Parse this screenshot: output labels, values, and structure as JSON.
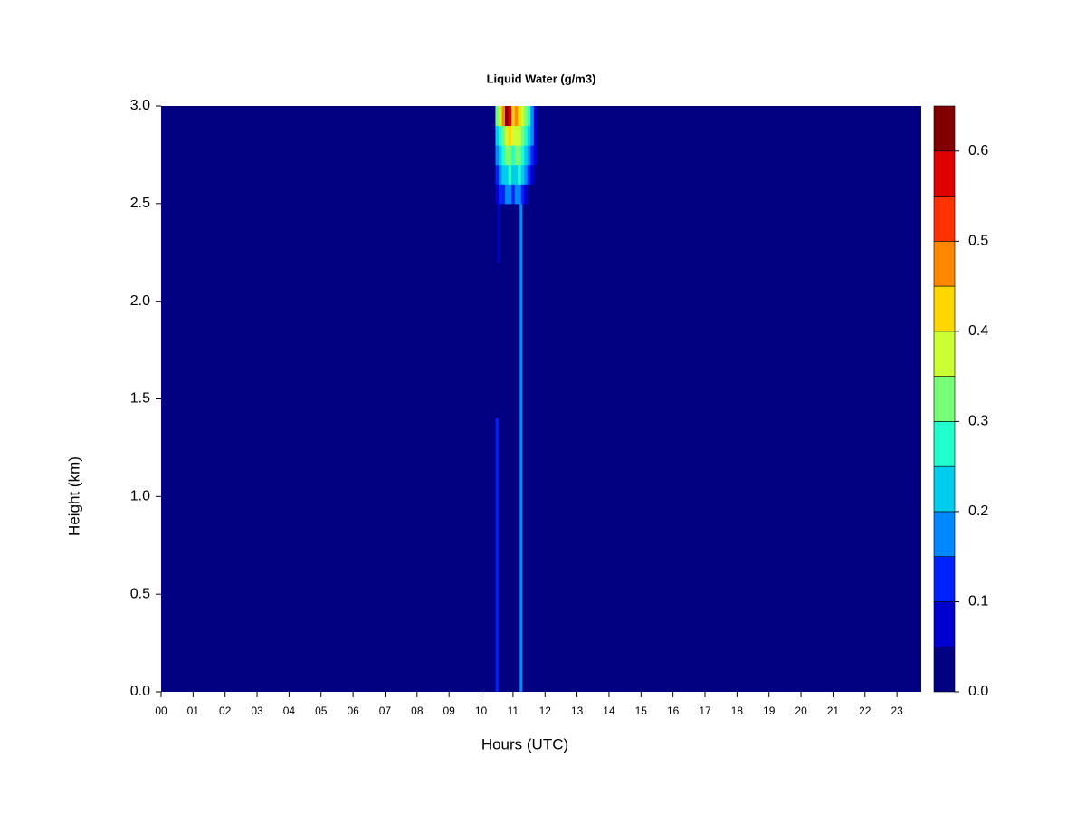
{
  "chart_data": {
    "type": "heatmap",
    "title": "Liquid Water (g/m3)",
    "x_label": "Hours (UTC)",
    "y_label": "Height (km)",
    "xlim": [
      0,
      23.76
    ],
    "ylim": [
      0,
      3
    ],
    "xticks": [
      {
        "value": 0,
        "label": "00"
      },
      {
        "value": 1,
        "label": "01"
      },
      {
        "value": 2,
        "label": "02"
      },
      {
        "value": 3,
        "label": "03"
      },
      {
        "value": 4,
        "label": "04"
      },
      {
        "value": 5,
        "label": "05"
      },
      {
        "value": 6,
        "label": "06"
      },
      {
        "value": 7,
        "label": "07"
      },
      {
        "value": 8,
        "label": "08"
      },
      {
        "value": 9,
        "label": "09"
      },
      {
        "value": 10,
        "label": "10"
      },
      {
        "value": 11,
        "label": "11"
      },
      {
        "value": 12,
        "label": "12"
      },
      {
        "value": 13,
        "label": "13"
      },
      {
        "value": 14,
        "label": "14"
      },
      {
        "value": 15,
        "label": "15"
      },
      {
        "value": 16,
        "label": "16"
      },
      {
        "value": 17,
        "label": "17"
      },
      {
        "value": 18,
        "label": "18"
      },
      {
        "value": 19,
        "label": "19"
      },
      {
        "value": 20,
        "label": "20"
      },
      {
        "value": 21,
        "label": "21"
      },
      {
        "value": 22,
        "label": "22"
      },
      {
        "value": 23,
        "label": "23"
      }
    ],
    "yticks": [
      {
        "value": 0,
        "label": "0.0"
      },
      {
        "value": 0.5,
        "label": "0.5"
      },
      {
        "value": 1,
        "label": "1.0"
      },
      {
        "value": 1.5,
        "label": "1.5"
      },
      {
        "value": 2,
        "label": "2.0"
      },
      {
        "value": 2.5,
        "label": "2.5"
      },
      {
        "value": 3,
        "label": "3.0"
      }
    ],
    "levels": [
      0,
      0.05,
      0.1,
      0.15,
      0.2,
      0.25,
      0.3,
      0.35,
      0.4,
      0.45,
      0.5,
      0.55,
      0.6,
      0.65
    ],
    "colors": [
      "#000080",
      "#0000cc",
      "#0022ff",
      "#0088ff",
      "#00ccee",
      "#22ffcc",
      "#77ff77",
      "#ccff33",
      "#ffd700",
      "#ff8800",
      "#ff3300",
      "#dd0000",
      "#800000"
    ],
    "colorbar_ticks": [
      {
        "value": 0,
        "label": "0.0"
      },
      {
        "value": 0.1,
        "label": "0.1"
      },
      {
        "value": 0.2,
        "label": "0.2"
      },
      {
        "value": 0.3,
        "label": "0.3"
      },
      {
        "value": 0.4,
        "label": "0.4"
      },
      {
        "value": 0.5,
        "label": "0.5"
      },
      {
        "value": 0.6,
        "label": "0.6"
      }
    ],
    "x": [
      10.5,
      10.6,
      10.7,
      10.8,
      10.9,
      11.0,
      11.1,
      11.2,
      11.3,
      11.4,
      11.5,
      11.6,
      11.7
    ],
    "y": [
      2.55,
      2.65,
      2.75,
      2.85,
      2.95
    ],
    "z": [
      [
        0.05,
        0.1,
        0.1,
        0.15,
        0.15,
        0.1,
        0.15,
        0.15,
        0.1,
        0.05,
        0,
        0,
        0
      ],
      [
        0.1,
        0.15,
        0.2,
        0.2,
        0.25,
        0.2,
        0.2,
        0.25,
        0.2,
        0.15,
        0.1,
        0.05,
        0
      ],
      [
        0.15,
        0.2,
        0.25,
        0.3,
        0.3,
        0.25,
        0.3,
        0.3,
        0.25,
        0.2,
        0.15,
        0.1,
        0.05
      ],
      [
        0.2,
        0.25,
        0.3,
        0.35,
        0.4,
        0.35,
        0.35,
        0.35,
        0.3,
        0.25,
        0.2,
        0.15,
        0.05
      ],
      [
        0.3,
        0.35,
        0.45,
        0.6,
        0.55,
        0.4,
        0.45,
        0.4,
        0.35,
        0.3,
        0.25,
        0.15,
        0.05
      ]
    ],
    "streaks": [
      {
        "x": 11.25,
        "y0": 0,
        "y1": 2.5,
        "value": 0.15
      },
      {
        "x": 10.5,
        "y0": 0,
        "y1": 1.4,
        "value": 0.1
      },
      {
        "x": 10.55,
        "y0": 2.2,
        "y1": 2.5,
        "value": 0.05
      }
    ]
  }
}
